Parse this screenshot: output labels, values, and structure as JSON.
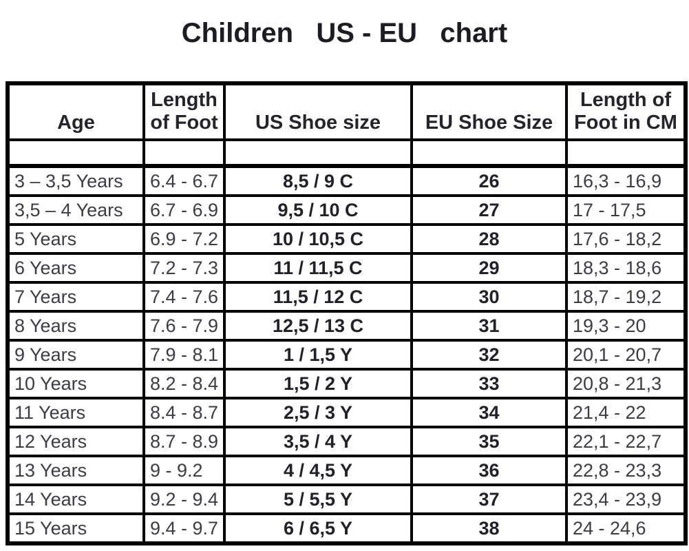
{
  "chart_data": {
    "type": "table",
    "title": "Children   US - EU   chart",
    "columns": [
      "Age",
      "Length of Foot",
      "US Shoe size",
      "EU Shoe Size",
      "Length of Foot in CM"
    ],
    "rows": [
      [
        "3 – 3,5 Years",
        "6.4 - 6.7",
        "8,5 / 9 C",
        "26",
        "16,3 - 16,9"
      ],
      [
        "3,5 – 4 Years",
        "6.7 - 6.9",
        "9,5 / 10 C",
        "27",
        "17 - 17,5"
      ],
      [
        "5 Years",
        "6.9 - 7.2",
        "10 / 10,5 C",
        "28",
        "17,6 - 18,2"
      ],
      [
        "6 Years",
        "7.2 - 7.3",
        "11 / 11,5 C",
        "29",
        "18,3 - 18,6"
      ],
      [
        "7 Years",
        "7.4 - 7.6",
        "11,5 / 12 C",
        "30",
        "18,7 - 19,2"
      ],
      [
        "8 Years",
        "7.6 - 7.9",
        "12,5 / 13 C",
        "31",
        "19,3 - 20"
      ],
      [
        "9 Years",
        "7.9 - 8.1",
        "1 / 1,5 Y",
        "32",
        "20,1 - 20,7"
      ],
      [
        "10 Years",
        "8.2 - 8.4",
        "1,5 / 2 Y",
        "33",
        "20,8 - 21,3"
      ],
      [
        "11 Years",
        "8.4 - 8.7",
        "2,5 / 3 Y",
        "34",
        "21,4 - 22"
      ],
      [
        "12 Years",
        "8.7 - 8.9",
        "3,5 / 4 Y",
        "35",
        "22,1 - 22,7"
      ],
      [
        "13 Years",
        "9 - 9.2",
        "4 / 4,5 Y",
        "36",
        "22,8 - 23,3"
      ],
      [
        "14 Years",
        "9.2 - 9.4",
        "5 / 5,5 Y",
        "37",
        "23,4 - 23,9"
      ],
      [
        "15 Years",
        "9.4 - 9.7",
        "6 / 6,5 Y",
        "38",
        "24 - 24,6"
      ]
    ]
  }
}
